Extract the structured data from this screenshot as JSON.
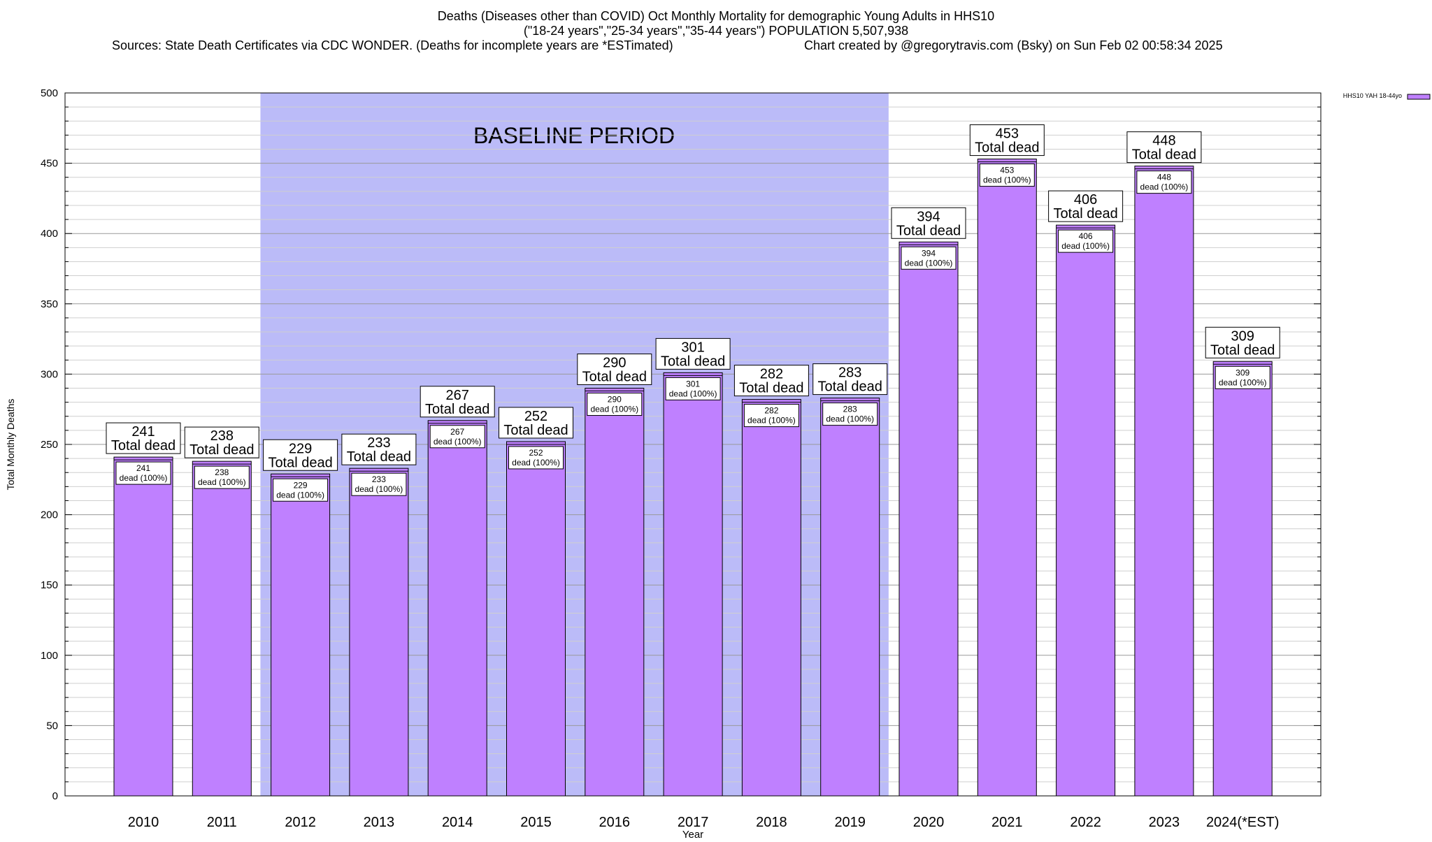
{
  "chart_data": {
    "type": "bar",
    "title_lines": [
      "Deaths (Diseases other than COVID) Oct Monthly Mortality for demographic Young Adults in HHS10",
      "(\"18-24 years\",\"25-34 years\",\"35-44 years\") POPULATION 5,507,938"
    ],
    "sources_text": "Sources: State Death Certificates via CDC WONDER. (Deaths for incomplete years are *ESTimated)",
    "credit_text": "Chart created by @gregorytravis.com (Bsky) on Sun Feb 02 00:58:34 2025",
    "xlabel": "Year",
    "ylabel": "Total Monthly Deaths",
    "ylim": [
      0,
      500
    ],
    "y_ticks": [
      0,
      50,
      100,
      150,
      200,
      250,
      300,
      350,
      400,
      450,
      500
    ],
    "y_minor_step": 10,
    "grid": true,
    "categories": [
      "2010",
      "2011",
      "2012",
      "2013",
      "2014",
      "2015",
      "2016",
      "2017",
      "2018",
      "2019",
      "2020",
      "2021",
      "2022",
      "2023",
      "2024(*EST)"
    ],
    "series": [
      {
        "name": "HHS10 YAH 18-44yo",
        "color": "#bf80ff",
        "values": [
          241,
          238,
          229,
          233,
          267,
          252,
          290,
          301,
          282,
          283,
          394,
          453,
          406,
          448,
          309
        ],
        "inner_labels": [
          "241",
          "238",
          "229",
          "233",
          "267",
          "252",
          "290",
          "301",
          "282",
          "283",
          "394",
          "453",
          "406",
          "448",
          "309"
        ],
        "inner_suffix": "dead (100%)"
      }
    ],
    "total_label_suffix": "Total dead",
    "legend_placement": "top-right",
    "baseline_period": {
      "label": "BASELINE PERIOD",
      "from_category": "2012",
      "to_category": "2019",
      "color": "#bbbbf8"
    }
  }
}
